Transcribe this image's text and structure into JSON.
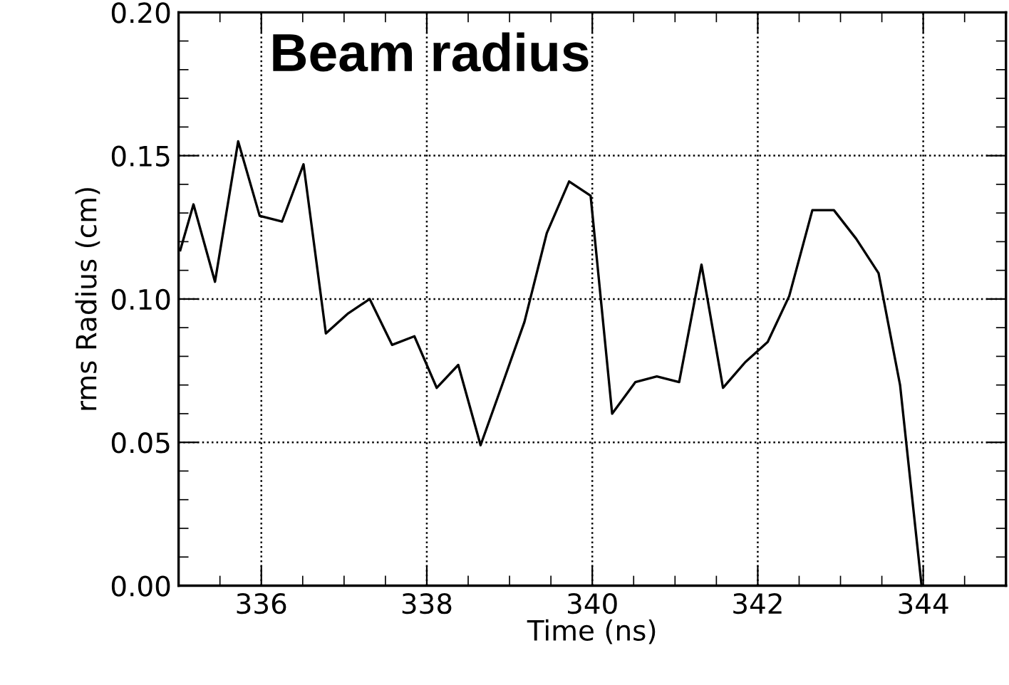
{
  "chart_data": {
    "type": "line",
    "xlabel": "Time (ns)",
    "ylabel": "rms Radius (cm)",
    "annotations": [
      "Beam radius"
    ],
    "xlim": [
      335,
      345
    ],
    "xticks": [
      336,
      338,
      340,
      342,
      344
    ],
    "ylim": [
      0,
      0.2
    ],
    "yticks": [
      {
        "value": 0,
        "label": "0.00"
      },
      {
        "value": 0.05,
        "label": "0.05"
      },
      {
        "value": 0.1,
        "label": "0.10"
      },
      {
        "value": 0.15,
        "label": "0.15"
      },
      {
        "value": 0.2,
        "label": "0.20"
      }
    ],
    "grid": true,
    "marker": "none",
    "line_style": "solid",
    "series": [
      {
        "color": "#000000",
        "x": [
          335.02,
          335.18,
          335.44,
          335.72,
          335.98,
          336.25,
          336.51,
          336.78,
          337.05,
          337.31,
          337.58,
          337.85,
          338.12,
          338.38,
          338.65,
          338.91,
          339.18,
          339.45,
          339.72,
          339.98,
          340.24,
          340.52,
          340.78,
          341.05,
          341.32,
          341.58,
          341.85,
          342.12,
          342.38,
          342.66,
          342.92,
          343.19,
          343.46,
          343.72,
          343.98
        ],
        "values": [
          0.117,
          0.133,
          0.106,
          0.155,
          0.129,
          0.127,
          0.147,
          0.088,
          0.095,
          0.1,
          0.084,
          0.087,
          0.069,
          0.077,
          0.049,
          0.07,
          0.092,
          0.123,
          0.141,
          0.136,
          0.06,
          0.071,
          0.073,
          0.071,
          0.112,
          0.069,
          0.078,
          0.085,
          0.101,
          0.131,
          0.131,
          0.121,
          0.109,
          0.07,
          0.0
        ]
      }
    ]
  }
}
